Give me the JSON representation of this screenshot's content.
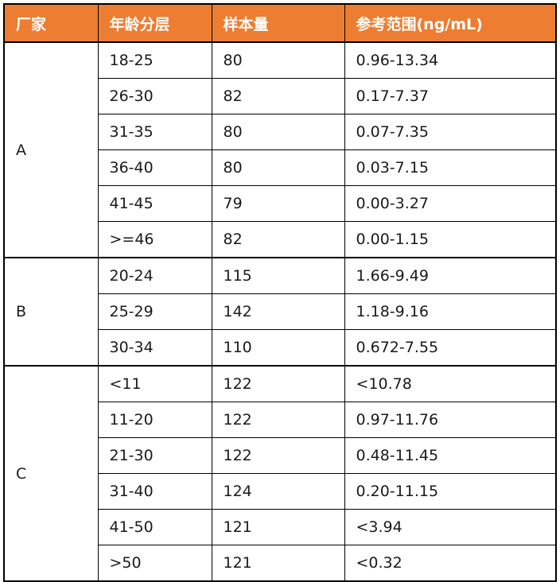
{
  "accent_color": "#ED7D31",
  "border_color": "#000000",
  "chart_data": {
    "type": "table",
    "columns": [
      "厂家",
      "年龄分层",
      "样本量",
      "参考范围(ng/mL)"
    ],
    "groups": [
      {
        "manufacturer": "A",
        "rows": [
          {
            "age": "18-25",
            "sample_size": "80",
            "reference_range": "0.96-13.34"
          },
          {
            "age": "26-30",
            "sample_size": "82",
            "reference_range": "0.17-7.37"
          },
          {
            "age": "31-35",
            "sample_size": "80",
            "reference_range": "0.07-7.35"
          },
          {
            "age": "36-40",
            "sample_size": "80",
            "reference_range": "0.03-7.15"
          },
          {
            "age": "41-45",
            "sample_size": "79",
            "reference_range": "0.00-3.27"
          },
          {
            "age": ">=46",
            "sample_size": "82",
            "reference_range": "0.00-1.15"
          }
        ]
      },
      {
        "manufacturer": "B",
        "rows": [
          {
            "age": "20-24",
            "sample_size": "115",
            "reference_range": "1.66-9.49"
          },
          {
            "age": "25-29",
            "sample_size": "142",
            "reference_range": "1.18-9.16"
          },
          {
            "age": "30-34",
            "sample_size": "110",
            "reference_range": "0.672-7.55"
          }
        ]
      },
      {
        "manufacturer": "C",
        "rows": [
          {
            "age": "<11",
            "sample_size": "122",
            "reference_range": "<10.78"
          },
          {
            "age": "11-20",
            "sample_size": "122",
            "reference_range": "0.97-11.76"
          },
          {
            "age": "21-30",
            "sample_size": "122",
            "reference_range": "0.48-11.45"
          },
          {
            "age": "31-40",
            "sample_size": "124",
            "reference_range": "0.20-11.15"
          },
          {
            "age": "41-50",
            "sample_size": "121",
            "reference_range": "<3.94"
          },
          {
            "age": ">50",
            "sample_size": "121",
            "reference_range": "<0.32"
          }
        ]
      }
    ]
  }
}
